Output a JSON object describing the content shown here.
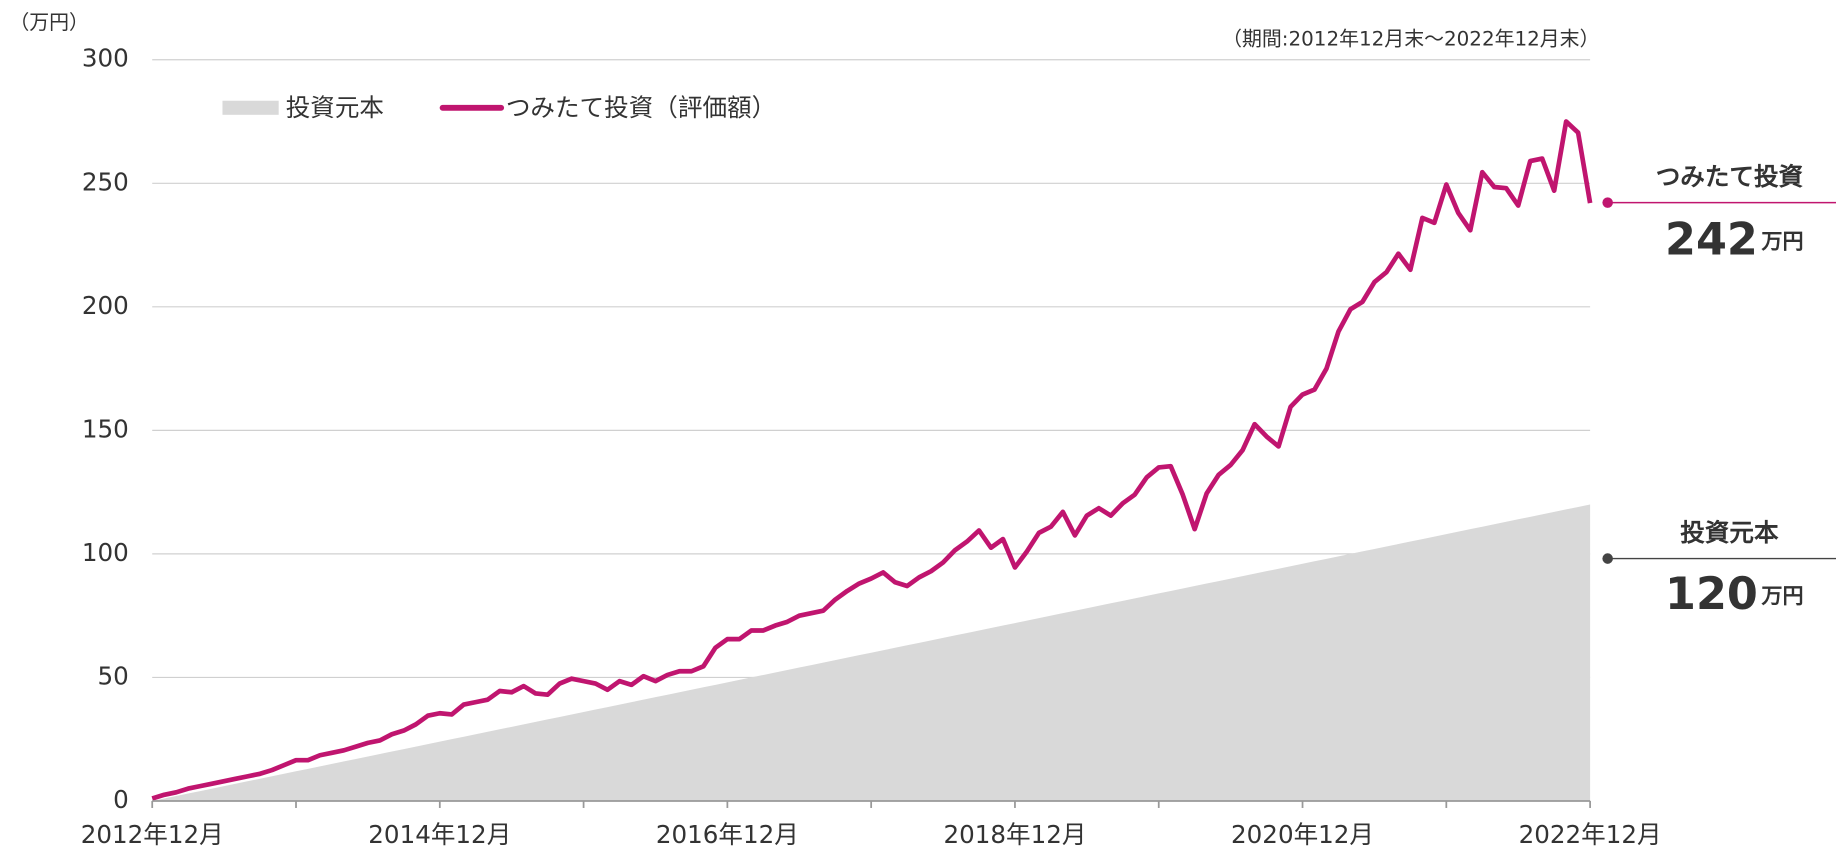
{
  "chart_data": {
    "type": "line",
    "subtitle": "（期間:2012年12月末～2022年12月末）",
    "y_axis_label": "（万円）",
    "categories": [
      "2012年12月",
      null,
      null,
      null,
      null,
      null,
      null,
      null,
      null,
      null,
      null,
      null,
      null,
      null,
      null,
      null,
      null,
      null,
      null,
      null,
      null,
      null,
      null,
      null,
      "2014年12月",
      null,
      null,
      null,
      null,
      null,
      null,
      null,
      null,
      null,
      null,
      null,
      null,
      null,
      null,
      null,
      null,
      null,
      null,
      null,
      null,
      null,
      null,
      null,
      "2016年12月",
      null,
      null,
      null,
      null,
      null,
      null,
      null,
      null,
      null,
      null,
      null,
      null,
      null,
      null,
      null,
      null,
      null,
      null,
      null,
      null,
      null,
      null,
      null,
      "2018年12月",
      null,
      null,
      null,
      null,
      null,
      null,
      null,
      null,
      null,
      null,
      null,
      null,
      null,
      null,
      null,
      null,
      null,
      null,
      null,
      null,
      null,
      null,
      null,
      "2020年12月",
      null,
      null,
      null,
      null,
      null,
      null,
      null,
      null,
      null,
      null,
      null,
      null,
      null,
      null,
      null,
      null,
      null,
      null,
      null,
      null,
      null,
      null,
      null,
      "2022年12月"
    ],
    "series": [
      {
        "name": "投資元本",
        "color": "#d9d9d9",
        "style": "area",
        "values": [
          0,
          1,
          2,
          3,
          4,
          5,
          6,
          7,
          8,
          9,
          10,
          11,
          12,
          13,
          14,
          15,
          16,
          17,
          18,
          19,
          20,
          21,
          22,
          23,
          24,
          25,
          26,
          27,
          28,
          29,
          30,
          31,
          32,
          33,
          34,
          35,
          36,
          37,
          38,
          39,
          40,
          41,
          42,
          43,
          44,
          45,
          46,
          47,
          48,
          49,
          50,
          51,
          52,
          53,
          54,
          55,
          56,
          57,
          58,
          59,
          60,
          61,
          62,
          63,
          64,
          65,
          66,
          67,
          68,
          69,
          70,
          71,
          72,
          73,
          74,
          75,
          76,
          77,
          78,
          79,
          80,
          81,
          82,
          83,
          84,
          85,
          86,
          87,
          88,
          89,
          90,
          91,
          92,
          93,
          94,
          95,
          96,
          97,
          98,
          99,
          100,
          101,
          102,
          103,
          104,
          105,
          106,
          107,
          108,
          109,
          110,
          111,
          112,
          113,
          114,
          115,
          116,
          117,
          118,
          119,
          120
        ]
      },
      {
        "name": "つみたて投資（評価額）",
        "color": "#c0156f",
        "style": "line",
        "values": [
          1,
          2.5,
          3.5,
          5,
          6,
          7,
          8,
          9,
          10,
          11,
          12.5,
          14.5,
          16.5,
          16.5,
          18.5,
          19.5,
          20.5,
          22,
          23.5,
          24.5,
          27,
          28.5,
          31,
          34.5,
          35.5,
          35,
          39,
          40,
          41,
          44.5,
          44,
          46.5,
          43.5,
          43,
          47.5,
          49.5,
          48.5,
          47.5,
          45,
          48.5,
          47,
          50.5,
          48.5,
          51,
          52.5,
          52.5,
          54.5,
          62,
          65.5,
          65.5,
          69,
          69,
          71,
          72.5,
          75,
          76,
          77,
          81.5,
          85,
          88,
          90,
          92.5,
          88.5,
          87,
          90.5,
          93,
          96.5,
          101.5,
          105,
          109.5,
          102.5,
          106,
          94.5,
          101,
          108.5,
          111,
          117,
          107.5,
          115.5,
          118.5,
          115.5,
          120.5,
          124,
          131,
          135,
          135.5,
          124,
          110,
          124.5,
          132,
          136,
          142,
          152.5,
          147.5,
          143.5,
          159.5,
          164.5,
          166.5,
          175,
          190,
          199,
          202,
          210,
          214,
          221.5,
          215,
          236,
          234,
          249.5,
          238,
          231,
          254.5,
          248.5,
          248,
          241,
          259,
          260,
          247,
          275,
          270.5,
          242
        ]
      }
    ],
    "end_labels": [
      {
        "name": "投資元本",
        "unit": "万円"
      },
      {
        "name": "つみたて投資",
        "unit": "万円"
      }
    ],
    "ylim": [
      0,
      300
    ],
    "yticks": [
      0,
      50,
      100,
      150,
      200,
      250,
      300
    ],
    "grid": true
  }
}
